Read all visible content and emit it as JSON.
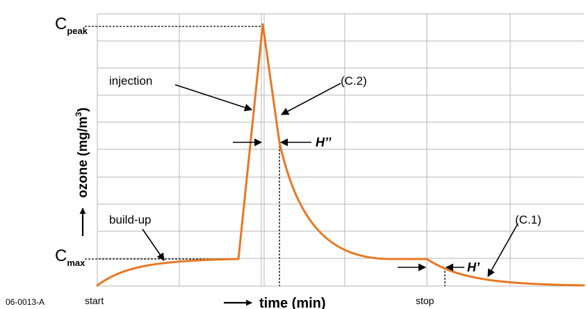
{
  "figure_id": "06-0013-A",
  "axes": {
    "y_label": "ozone (mg/m",
    "y_label_superscript": "3",
    "y_label_close": ")",
    "x_label": "time (min)"
  },
  "levels": {
    "c_peak": {
      "base": "C",
      "subscript": "peak"
    },
    "c_max": {
      "base": "C",
      "subscript": "max"
    }
  },
  "time_markers": {
    "start": "start",
    "stop": "stop"
  },
  "annotations": {
    "injection": "injection",
    "c2": "(C.2)",
    "build_up": "build-up",
    "c1": "(C.1)",
    "h_double_prime": "H’’",
    "h_prime": "H’"
  },
  "colors": {
    "curve": "#E87722",
    "grid": "#b4b4b4",
    "text": "#000000"
  },
  "chart_data": {
    "type": "line",
    "title": "",
    "xlabel": "time (min)",
    "ylabel": "ozone (mg/m3)",
    "grid": true,
    "series": [
      {
        "segments": [
          "build-up",
          "injection",
          "decay (C.2)",
          "plateau",
          "decay after stop (C.1)"
        ]
      }
    ]
  }
}
